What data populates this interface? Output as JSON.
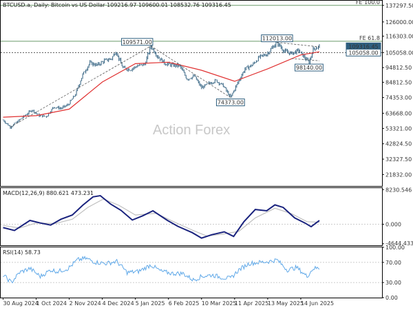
{
  "header": {
    "main": "BTCUSD.a, Daily:  Bitcoin vs US Dollar  109216.97  109600.01  108532.76  109316.45",
    "macd": "MACD(12,26,9)  880.621  473.231",
    "rsi": "RSI(14)  58.73"
  },
  "watermark": "Action Forex",
  "colors": {
    "candle": "#2f5f7f",
    "ma": "#e03030",
    "macd": "#1a237e",
    "signal": "#bfbfbf",
    "rsi": "#5fa8e8",
    "fib": "#6a9a6a",
    "label_border": "#2f5f7f"
  },
  "chart_data": [
    {
      "type": "candlestick",
      "panel": "price",
      "symbol": "BTCUSD.a",
      "timeframe": "Daily",
      "x_labels": [
        "30 Aug 2024",
        "1 Oct 2024",
        "2 Nov 2024",
        "4 Dec 2024",
        "5 Jan 2025",
        "6 Feb 2025",
        "10 Mar 2025",
        "11 Apr 2025",
        "13 May 2025",
        "14 Jun 2025"
      ],
      "y_ticks": [
        137297.5,
        126000.0,
        116303.0,
        105058.0,
        94812.5,
        84812.5,
        74353.0,
        63668.0,
        53321.0,
        42824.5,
        32327.5,
        21832.0
      ],
      "ylim": [
        14000,
        140500
      ],
      "close_path": [
        [
          "2024-08-30",
          59000
        ],
        [
          "2024-09-06",
          54200
        ],
        [
          "2024-09-13",
          58000
        ],
        [
          "2024-09-20",
          62000
        ],
        [
          "2024-09-27",
          66000
        ],
        [
          "2024-10-04",
          62000
        ],
        [
          "2024-10-11",
          61500
        ],
        [
          "2024-10-18",
          68000
        ],
        [
          "2024-10-25",
          67000
        ],
        [
          "2024-11-01",
          69500
        ],
        [
          "2024-11-08",
          76500
        ],
        [
          "2024-11-15",
          90000
        ],
        [
          "2024-11-22",
          98000
        ],
        [
          "2024-11-29",
          96500
        ],
        [
          "2024-12-06",
          99500
        ],
        [
          "2024-12-13",
          101000
        ],
        [
          "2024-12-17",
          106000
        ],
        [
          "2024-12-24",
          94500
        ],
        [
          "2024-12-31",
          93500
        ],
        [
          "2025-01-07",
          96000
        ],
        [
          "2025-01-14",
          97000
        ],
        [
          "2025-01-20",
          109571
        ],
        [
          "2025-01-27",
          102000
        ],
        [
          "2025-02-03",
          97500
        ],
        [
          "2025-02-10",
          96500
        ],
        [
          "2025-02-17",
          96000
        ],
        [
          "2025-02-24",
          87000
        ],
        [
          "2025-03-03",
          89000
        ],
        [
          "2025-03-10",
          81000
        ],
        [
          "2025-03-17",
          84000
        ],
        [
          "2025-03-24",
          86000
        ],
        [
          "2025-03-31",
          82500
        ],
        [
          "2025-04-07",
          74373
        ],
        [
          "2025-04-14",
          84500
        ],
        [
          "2025-04-21",
          94000
        ],
        [
          "2025-04-28",
          96500
        ],
        [
          "2025-05-05",
          102000
        ],
        [
          "2025-05-12",
          104000
        ],
        [
          "2025-05-22",
          112013
        ],
        [
          "2025-05-29",
          106000
        ],
        [
          "2025-06-05",
          104500
        ],
        [
          "2025-06-12",
          106500
        ],
        [
          "2025-06-22",
          98140
        ],
        [
          "2025-06-26",
          107500
        ],
        [
          "2025-07-02",
          109316
        ]
      ],
      "ma_path": [
        [
          "2024-08-30",
          61000
        ],
        [
          "2024-10-01",
          62000
        ],
        [
          "2024-11-02",
          66500
        ],
        [
          "2024-12-04",
          85000
        ],
        [
          "2025-01-05",
          97500
        ],
        [
          "2025-02-06",
          98500
        ],
        [
          "2025-03-10",
          93000
        ],
        [
          "2025-04-11",
          85500
        ],
        [
          "2025-05-13",
          94000
        ],
        [
          "2025-06-14",
          103500
        ],
        [
          "2025-07-02",
          105600
        ]
      ],
      "levels": [
        {
          "label": "FE 100.0",
          "value": 137297.5,
          "style": "solid"
        },
        {
          "label": "FE 61.8",
          "value": 112800.0,
          "style": "solid"
        },
        {
          "label": "",
          "value": 105058.0,
          "style": "dotted"
        }
      ],
      "price_labels": [
        {
          "text": "109571.00",
          "date": "2025-01-20",
          "value": 109571
        },
        {
          "text": "112013.00",
          "date": "2025-05-22",
          "value": 112013
        },
        {
          "text": "98140.00",
          "date": "2025-06-22",
          "value": 98140
        },
        {
          "text": "74373.00",
          "date": "2025-04-07",
          "value": 74373
        }
      ],
      "axis_price_tags": [
        {
          "text": "109316.45",
          "value": 109316.45
        },
        {
          "text": "105058.00",
          "value": 105058.0
        }
      ],
      "trendlines": [
        {
          "from": [
            "2024-09-06",
            54200
          ],
          "to": [
            "2025-01-20",
            109571
          ]
        },
        {
          "from": [
            "2025-01-20",
            109571
          ],
          "to": [
            "2025-04-07",
            74373
          ]
        },
        {
          "from": [
            "2025-05-22",
            112013
          ],
          "to": [
            "2025-07-02",
            109000
          ]
        },
        {
          "from": [
            "2025-06-05",
            101000
          ],
          "to": [
            "2025-07-02",
            99500
          ]
        }
      ]
    },
    {
      "type": "line",
      "panel": "macd",
      "title": "MACD(12,26,9)",
      "values_shown": [
        880.621,
        473.231
      ],
      "y_ticks": [
        8230.546,
        0.0,
        -4644.433
      ],
      "ylim": [
        -5000,
        8600
      ],
      "series": [
        {
          "name": "MACD",
          "points": [
            [
              "2024-08-30",
              -800
            ],
            [
              "2024-09-10",
              -1500
            ],
            [
              "2024-09-25",
              900
            ],
            [
              "2024-10-05",
              300
            ],
            [
              "2024-10-15",
              -200
            ],
            [
              "2024-10-25",
              1200
            ],
            [
              "2024-11-05",
              2200
            ],
            [
              "2024-11-15",
              4500
            ],
            [
              "2024-11-25",
              6500
            ],
            [
              "2024-12-02",
              6800
            ],
            [
              "2024-12-12",
              4800
            ],
            [
              "2024-12-22",
              3300
            ],
            [
              "2025-01-02",
              1000
            ],
            [
              "2025-01-12",
              2000
            ],
            [
              "2025-01-22",
              3200
            ],
            [
              "2025-02-05",
              900
            ],
            [
              "2025-02-15",
              -500
            ],
            [
              "2025-03-01",
              -2000
            ],
            [
              "2025-03-10",
              -3300
            ],
            [
              "2025-03-20",
              -2500
            ],
            [
              "2025-04-01",
              -1800
            ],
            [
              "2025-04-10",
              -2900
            ],
            [
              "2025-04-20",
              600
            ],
            [
              "2025-05-01",
              3500
            ],
            [
              "2025-05-12",
              3200
            ],
            [
              "2025-05-20",
              4600
            ],
            [
              "2025-05-28",
              4000
            ],
            [
              "2025-06-08",
              1500
            ],
            [
              "2025-06-18",
              300
            ],
            [
              "2025-06-24",
              -600
            ],
            [
              "2025-07-02",
              880
            ]
          ]
        },
        {
          "name": "Signal",
          "points": [
            [
              "2024-08-30",
              -300
            ],
            [
              "2024-09-15",
              -900
            ],
            [
              "2024-10-01",
              300
            ],
            [
              "2024-10-20",
              200
            ],
            [
              "2024-11-05",
              1200
            ],
            [
              "2024-11-20",
              4000
            ],
            [
              "2024-12-05",
              6000
            ],
            [
              "2024-12-20",
              4500
            ],
            [
              "2025-01-05",
              2200
            ],
            [
              "2025-01-25",
              2600
            ],
            [
              "2025-02-10",
              700
            ],
            [
              "2025-03-01",
              -1400
            ],
            [
              "2025-03-15",
              -2800
            ],
            [
              "2025-04-01",
              -2300
            ],
            [
              "2025-04-15",
              -1700
            ],
            [
              "2025-05-01",
              1500
            ],
            [
              "2025-05-20",
              3800
            ],
            [
              "2025-06-05",
              2500
            ],
            [
              "2025-06-20",
              600
            ],
            [
              "2025-07-02",
              473
            ]
          ]
        }
      ]
    },
    {
      "type": "line",
      "panel": "rsi",
      "title": "RSI(14)",
      "values_shown": [
        58.73
      ],
      "y_ticks": [
        100.0,
        70.0,
        30.0,
        0.0
      ],
      "ylim": [
        0,
        100
      ],
      "series": [
        {
          "name": "RSI",
          "points": [
            [
              "2024-08-30",
              45
            ],
            [
              "2024-09-07",
              30
            ],
            [
              "2024-09-15",
              50
            ],
            [
              "2024-09-25",
              58
            ],
            [
              "2024-10-05",
              42
            ],
            [
              "2024-10-15",
              55
            ],
            [
              "2024-10-22",
              52
            ],
            [
              "2024-11-01",
              58
            ],
            [
              "2024-11-10",
              75
            ],
            [
              "2024-11-18",
              78
            ],
            [
              "2024-11-28",
              70
            ],
            [
              "2024-12-08",
              68
            ],
            [
              "2024-12-18",
              72
            ],
            [
              "2024-12-28",
              50
            ],
            [
              "2025-01-08",
              52
            ],
            [
              "2025-01-20",
              65
            ],
            [
              "2025-01-30",
              52
            ],
            [
              "2025-02-10",
              48
            ],
            [
              "2025-02-20",
              48
            ],
            [
              "2025-03-02",
              35
            ],
            [
              "2025-03-10",
              42
            ],
            [
              "2025-03-20",
              45
            ],
            [
              "2025-03-30",
              40
            ],
            [
              "2025-04-07",
              38
            ],
            [
              "2025-04-15",
              55
            ],
            [
              "2025-04-25",
              68
            ],
            [
              "2025-05-05",
              70
            ],
            [
              "2025-05-15",
              72
            ],
            [
              "2025-05-22",
              75
            ],
            [
              "2025-06-01",
              55
            ],
            [
              "2025-06-10",
              60
            ],
            [
              "2025-06-20",
              42
            ],
            [
              "2025-06-26",
              58
            ],
            [
              "2025-07-02",
              58.73
            ]
          ]
        }
      ],
      "levels": [
        70,
        30
      ]
    }
  ]
}
